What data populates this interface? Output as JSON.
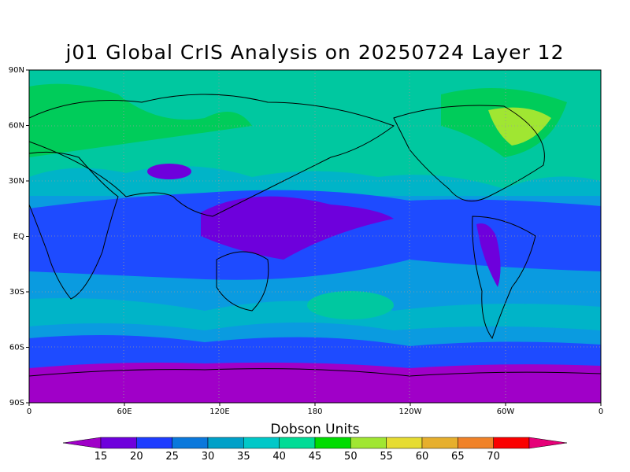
{
  "title": "j01 Global CrIS Analysis on 20250724 Layer 12",
  "map": {
    "type": "global-contour-map",
    "lat_ticks": [
      "90N",
      "60N",
      "30N",
      "EQ",
      "30S",
      "60S",
      "90S"
    ],
    "lon_ticks": [
      "0",
      "60E",
      "120E",
      "180",
      "120W",
      "60W",
      "0"
    ],
    "grid_lines": "dotted"
  },
  "colorbar": {
    "title": "Dobson Units",
    "levels": [
      "15",
      "20",
      "25",
      "30",
      "35",
      "40",
      "45",
      "50",
      "55",
      "60",
      "65",
      "70"
    ],
    "colors": [
      "#a000c8",
      "#6e00dc",
      "#1e3cff",
      "#0a78dc",
      "#00a0c8",
      "#00c8c8",
      "#00dc96",
      "#00dc00",
      "#a0e632",
      "#e6dc32",
      "#e6af2d",
      "#f08228",
      "#fa0000",
      "#e60078"
    ]
  }
}
